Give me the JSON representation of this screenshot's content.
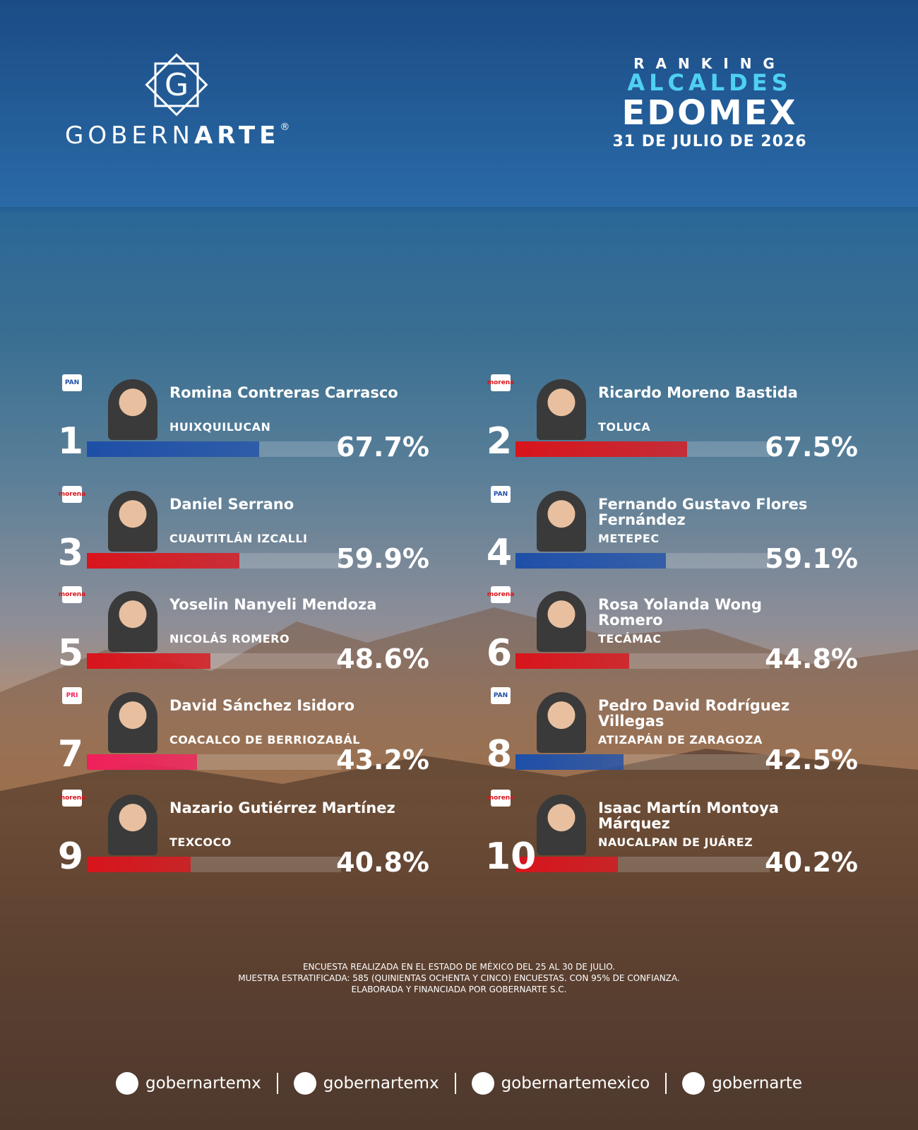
{
  "header": {
    "logo_letter": "G",
    "brand_light": "GOBERN",
    "brand_bold": "ARTE",
    "registered": "®",
    "kicker": "RANKING",
    "title_1": "ALCALDES",
    "title_2": "EDOMEX",
    "date": "31 DE JULIO DE 2026"
  },
  "chart_data": {
    "type": "bar",
    "ranks": [
      1,
      2,
      3,
      4,
      5,
      6,
      7,
      8,
      9,
      10
    ],
    "categories": [
      "Romina Contreras Carrasco",
      "Ricardo Moreno Bastida",
      "Daniel Serrano",
      "Fernando Gustavo Flores Fernández",
      "Yoselin Nanyeli Mendoza",
      "Rosa Yolanda Wong Romero",
      "David Sánchez Isidoro",
      "Pedro David Rodríguez Villegas",
      "Nazario Gutiérrez Martínez",
      "Isaac Martín Montoya Márquez"
    ],
    "municipalities": [
      "HUIXQUILUCAN",
      "TOLUCA",
      "CUAUTITLÁN IZCALLI",
      "METEPEC",
      "NICOLÁS ROMERO",
      "TECÁMAC",
      "COACALCO DE BERRIOZABÁL",
      "ATIZAPÁN DE ZARAGOZA",
      "TEXCOCO",
      "NAUCALPAN DE JUÁREZ"
    ],
    "parties": [
      "PAN",
      "morena",
      "morena",
      "PAN",
      "morena",
      "morena",
      "PRI",
      "PAN",
      "morena",
      "morena"
    ],
    "values": [
      67.7,
      67.5,
      59.9,
      59.1,
      48.6,
      44.8,
      43.2,
      42.5,
      40.8,
      40.2
    ],
    "value_labels": [
      "67.7%",
      "67.5%",
      "59.9%",
      "59.1%",
      "48.6%",
      "44.8%",
      "43.2%",
      "42.5%",
      "40.8%",
      "40.2%"
    ],
    "colors": [
      "#1e4fa8",
      "#d8141c",
      "#d8141c",
      "#1e4fa8",
      "#d8141c",
      "#d8141c",
      "#f0205a",
      "#1e4fa8",
      "#d8141c",
      "#d8141c"
    ],
    "xlim": [
      0,
      100
    ]
  },
  "footnote": [
    "ENCUESTA REALIZADA EN EL ESTADO DE MÉXICO DEL 25 AL 30 DE JULIO.",
    "MUESTRA ESTRATIFICADA: 585 (QUINIENTAS OCHENTA Y CINCO) ENCUESTAS. CON 95% DE CONFIANZA.",
    "ELABORADA Y FINANCIADA POR GOBERNARTE S.C."
  ],
  "social": [
    "gobernartemx",
    "gobernartemx",
    "gobernartemexico",
    "gobernarte"
  ]
}
